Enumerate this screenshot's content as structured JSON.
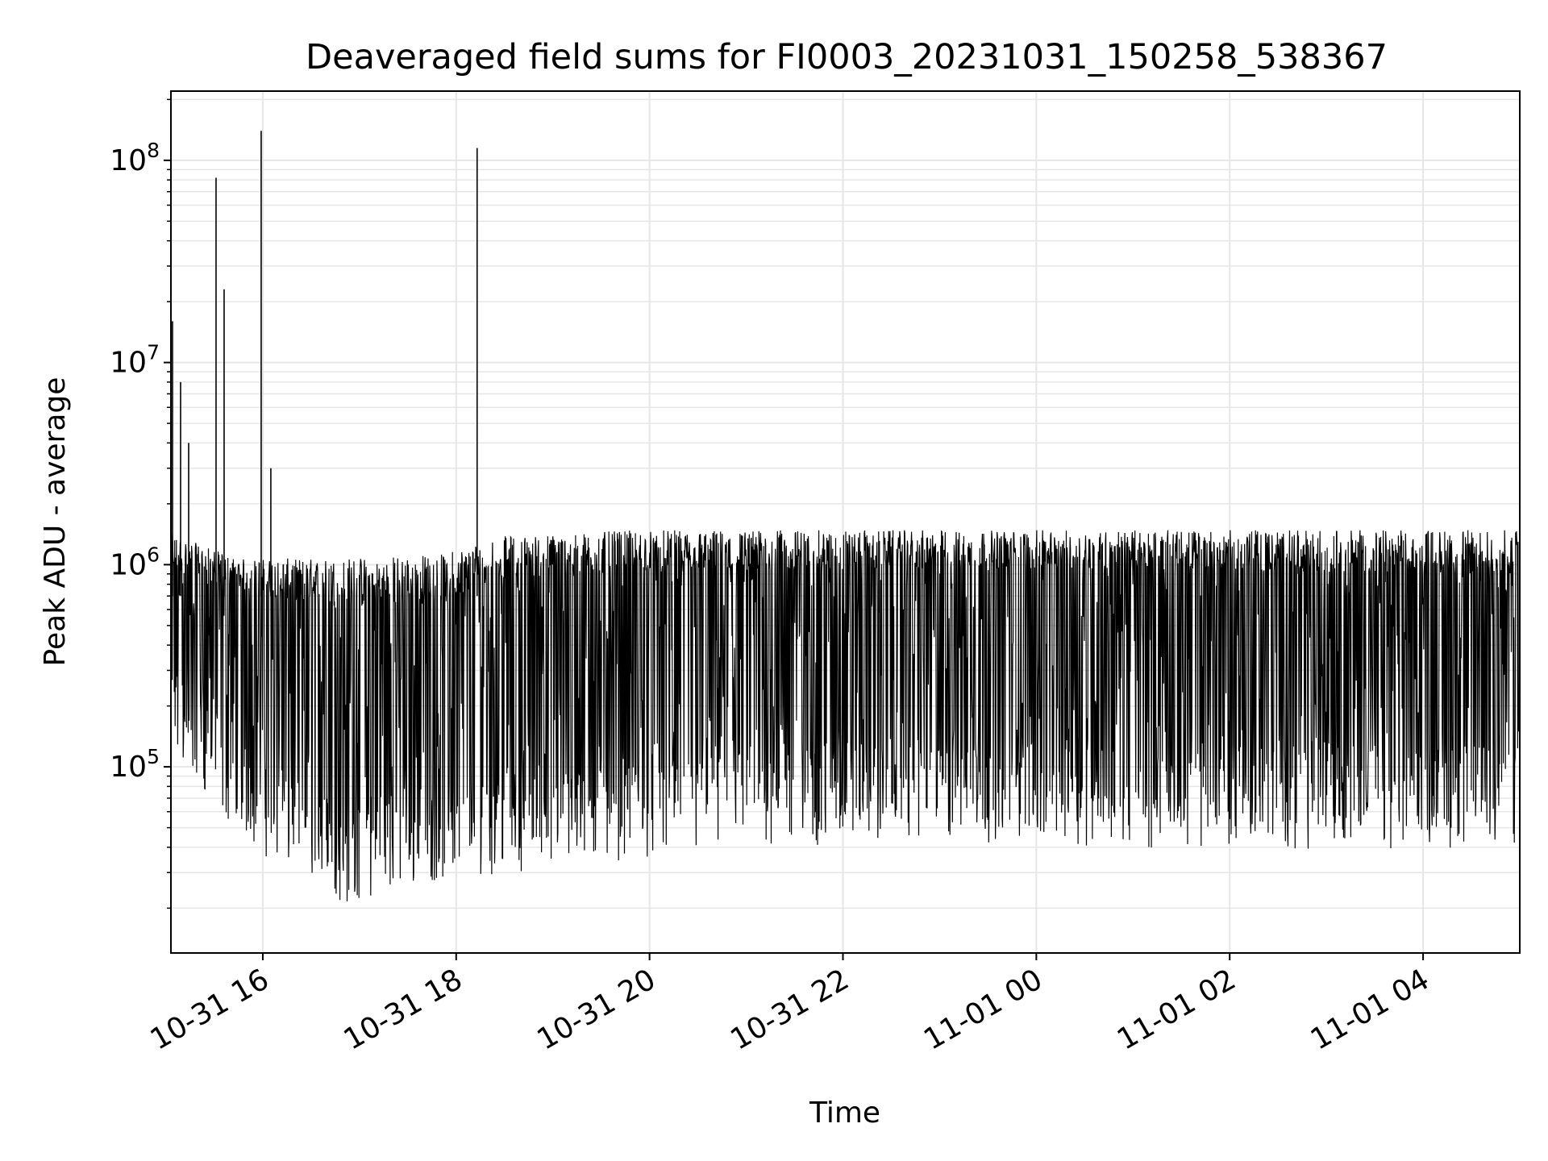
{
  "chart_data": {
    "type": "line",
    "title": "Deaveraged field sums for FI0003_20231031_150258_538367",
    "xlabel": "Time",
    "ylabel": "Peak ADU - average",
    "y_scale": "log",
    "ylim": [
      12000,
      220000000
    ],
    "xlim": [
      "2023-10-31 15:03",
      "2023-11-01 05:00"
    ],
    "grid": true,
    "line_color": "#000000",
    "grid_color": "#e6e6e6",
    "x_ticks": [
      {
        "value": "2023-10-31 16:00",
        "label": "10-31 16"
      },
      {
        "value": "2023-10-31 18:00",
        "label": "10-31 18"
      },
      {
        "value": "2023-10-31 20:00",
        "label": "10-31 20"
      },
      {
        "value": "2023-10-31 22:00",
        "label": "10-31 22"
      },
      {
        "value": "2023-11-01 00:00",
        "label": "11-01 00"
      },
      {
        "value": "2023-11-01 02:00",
        "label": "11-01 02"
      },
      {
        "value": "2023-11-01 04:00",
        "label": "11-01 04"
      }
    ],
    "y_ticks": [
      {
        "value": 100000,
        "base": "10",
        "exp": "5"
      },
      {
        "value": 1000000,
        "base": "10",
        "exp": "6"
      },
      {
        "value": 10000000,
        "base": "10",
        "exp": "7"
      },
      {
        "value": 100000000,
        "base": "10",
        "exp": "8"
      }
    ],
    "series": [
      {
        "points": [
          [
            "2023-10-31 15:03",
            1500000
          ],
          [
            "2023-10-31 15:04",
            16000000
          ],
          [
            "2023-10-31 15:05",
            600000
          ],
          [
            "2023-10-31 15:09",
            8000000
          ],
          [
            "2023-10-31 15:10",
            700000
          ],
          [
            "2023-10-31 15:14",
            4000000
          ],
          [
            "2023-10-31 15:15",
            120000
          ],
          [
            "2023-10-31 15:30",
            1200000
          ],
          [
            "2023-10-31 15:31",
            82000000
          ],
          [
            "2023-10-31 15:32",
            900000
          ],
          [
            "2023-10-31 15:36",
            23000000
          ],
          [
            "2023-10-31 15:37",
            60000
          ],
          [
            "2023-10-31 15:50",
            1000000
          ],
          [
            "2023-10-31 15:59",
            140000000
          ],
          [
            "2023-10-31 16:00",
            40000
          ],
          [
            "2023-10-31 16:05",
            3000000
          ],
          [
            "2023-10-31 16:06",
            500000
          ],
          [
            "2023-10-31 16:30",
            25000
          ],
          [
            "2023-10-31 16:49",
            20000
          ],
          [
            "2023-10-31 17:07",
            18000
          ],
          [
            "2023-10-31 17:30",
            19000
          ],
          [
            "2023-10-31 17:45",
            1100000
          ],
          [
            "2023-10-31 18:00",
            30000
          ],
          [
            "2023-10-31 18:13",
            115000000
          ],
          [
            "2023-10-31 18:14",
            1000000
          ],
          [
            "2023-10-31 19:00",
            1400000
          ],
          [
            "2023-10-31 20:00",
            1500000
          ],
          [
            "2023-10-31 22:00",
            1500000
          ],
          [
            "2023-11-01 00:00",
            1450000
          ],
          [
            "2023-11-01 02:00",
            1500000
          ],
          [
            "2023-11-01 04:00",
            1600000
          ],
          [
            "2023-11-01 04:40",
            1900000
          ],
          [
            "2023-11-01 05:00",
            700000
          ]
        ]
      }
    ]
  }
}
